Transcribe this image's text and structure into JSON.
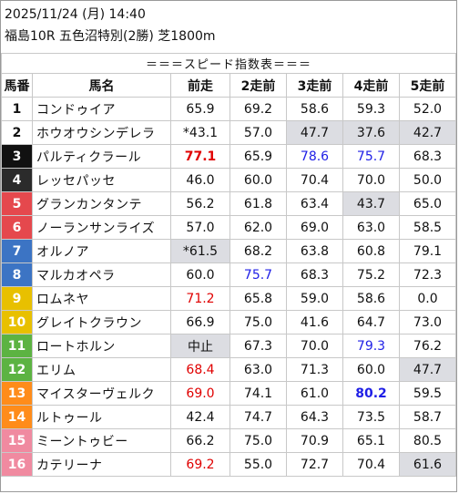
{
  "header": {
    "datetime": "2025/11/24 (月) 14:40",
    "race": "福島10R 五色沼特別(2勝) 芝1800m"
  },
  "table": {
    "title": "＝＝＝スピード指数表＝＝＝",
    "columns": [
      "馬番",
      "馬名",
      "前走",
      "2走前",
      "3走前",
      "4走前",
      "5走前"
    ],
    "colors": {
      "gate": [
        "#ffffff",
        "#ffffff",
        "#111111",
        "#2b2b2b",
        "#e5484d",
        "#e5484d",
        "#3c74c4",
        "#3c74c4",
        "#e8c000",
        "#e8c000",
        "#5cb342",
        "#5cb342",
        "#ff8c1a",
        "#ff8c1a",
        "#f08aa0",
        "#f08aa0"
      ],
      "gate_text": [
        "#111111",
        "#111111",
        "#ffffff",
        "#ffffff",
        "#ffffff",
        "#ffffff",
        "#ffffff",
        "#ffffff",
        "#ffffff",
        "#ffffff",
        "#ffffff",
        "#ffffff",
        "#ffffff",
        "#ffffff",
        "#ffffff",
        "#ffffff"
      ]
    },
    "rows": [
      {
        "num": "1",
        "name": "コンドゥイア",
        "cells": [
          {
            "v": "65.9"
          },
          {
            "v": "69.2"
          },
          {
            "v": "58.6"
          },
          {
            "v": "59.3"
          },
          {
            "v": "52.0"
          }
        ]
      },
      {
        "num": "2",
        "name": "ホウオウシンデレラ",
        "cells": [
          {
            "v": "*43.1"
          },
          {
            "v": "57.0"
          },
          {
            "v": "47.7",
            "s": "gray"
          },
          {
            "v": "37.6",
            "s": "gray"
          },
          {
            "v": "42.7",
            "s": "gray"
          }
        ]
      },
      {
        "num": "3",
        "name": "パルティクラール",
        "cells": [
          {
            "v": "77.1",
            "s": "red-b"
          },
          {
            "v": "65.9"
          },
          {
            "v": "78.6",
            "s": "blue"
          },
          {
            "v": "75.7",
            "s": "blue"
          },
          {
            "v": "68.3"
          }
        ]
      },
      {
        "num": "4",
        "name": "レッセパッセ",
        "cells": [
          {
            "v": "46.0"
          },
          {
            "v": "60.0"
          },
          {
            "v": "70.4"
          },
          {
            "v": "70.0"
          },
          {
            "v": "50.0"
          }
        ]
      },
      {
        "num": "5",
        "name": "グランカンタンテ",
        "cells": [
          {
            "v": "56.2"
          },
          {
            "v": "61.8"
          },
          {
            "v": "63.4"
          },
          {
            "v": "43.7",
            "s": "gray"
          },
          {
            "v": "65.0"
          }
        ]
      },
      {
        "num": "6",
        "name": "ノーランサンライズ",
        "cells": [
          {
            "v": "57.0"
          },
          {
            "v": "62.0"
          },
          {
            "v": "69.0"
          },
          {
            "v": "63.0"
          },
          {
            "v": "58.5"
          }
        ]
      },
      {
        "num": "7",
        "name": "オルノア",
        "cells": [
          {
            "v": "*61.5",
            "s": "gray"
          },
          {
            "v": "68.2"
          },
          {
            "v": "63.8"
          },
          {
            "v": "60.8"
          },
          {
            "v": "79.1"
          }
        ]
      },
      {
        "num": "8",
        "name": "マルカオペラ",
        "cells": [
          {
            "v": "60.0"
          },
          {
            "v": "75.7",
            "s": "blue"
          },
          {
            "v": "68.3"
          },
          {
            "v": "75.2"
          },
          {
            "v": "72.3"
          }
        ]
      },
      {
        "num": "9",
        "name": "ロムネヤ",
        "cells": [
          {
            "v": "71.2",
            "s": "red"
          },
          {
            "v": "65.8"
          },
          {
            "v": "59.0"
          },
          {
            "v": "58.6"
          },
          {
            "v": "0.0"
          }
        ]
      },
      {
        "num": "10",
        "name": "グレイトクラウン",
        "cells": [
          {
            "v": "66.9"
          },
          {
            "v": "75.0"
          },
          {
            "v": "41.6"
          },
          {
            "v": "64.7"
          },
          {
            "v": "73.0"
          }
        ]
      },
      {
        "num": "11",
        "name": "ロートホルン",
        "cells": [
          {
            "v": "中止",
            "s": "gray"
          },
          {
            "v": "67.3"
          },
          {
            "v": "70.0"
          },
          {
            "v": "79.3",
            "s": "blue"
          },
          {
            "v": "76.2"
          }
        ]
      },
      {
        "num": "12",
        "name": "エリム",
        "cells": [
          {
            "v": "68.4",
            "s": "red"
          },
          {
            "v": "63.0"
          },
          {
            "v": "71.3"
          },
          {
            "v": "60.0"
          },
          {
            "v": "47.7",
            "s": "gray"
          }
        ]
      },
      {
        "num": "13",
        "name": "マイスターヴェルク",
        "cells": [
          {
            "v": "69.0",
            "s": "red"
          },
          {
            "v": "74.1"
          },
          {
            "v": "61.0"
          },
          {
            "v": "80.2",
            "s": "blue-b"
          },
          {
            "v": "59.5"
          }
        ]
      },
      {
        "num": "14",
        "name": "ルトゥール",
        "cells": [
          {
            "v": "42.4"
          },
          {
            "v": "74.7"
          },
          {
            "v": "64.3"
          },
          {
            "v": "73.5"
          },
          {
            "v": "58.7"
          }
        ]
      },
      {
        "num": "15",
        "name": "ミーントゥビー",
        "cells": [
          {
            "v": "66.2"
          },
          {
            "v": "75.0"
          },
          {
            "v": "70.9"
          },
          {
            "v": "65.1"
          },
          {
            "v": "80.5"
          }
        ]
      },
      {
        "num": "16",
        "name": "カテリーナ",
        "cells": [
          {
            "v": "69.2",
            "s": "red"
          },
          {
            "v": "55.0"
          },
          {
            "v": "72.7"
          },
          {
            "v": "70.4"
          },
          {
            "v": "61.6",
            "s": "gray"
          }
        ]
      }
    ]
  }
}
